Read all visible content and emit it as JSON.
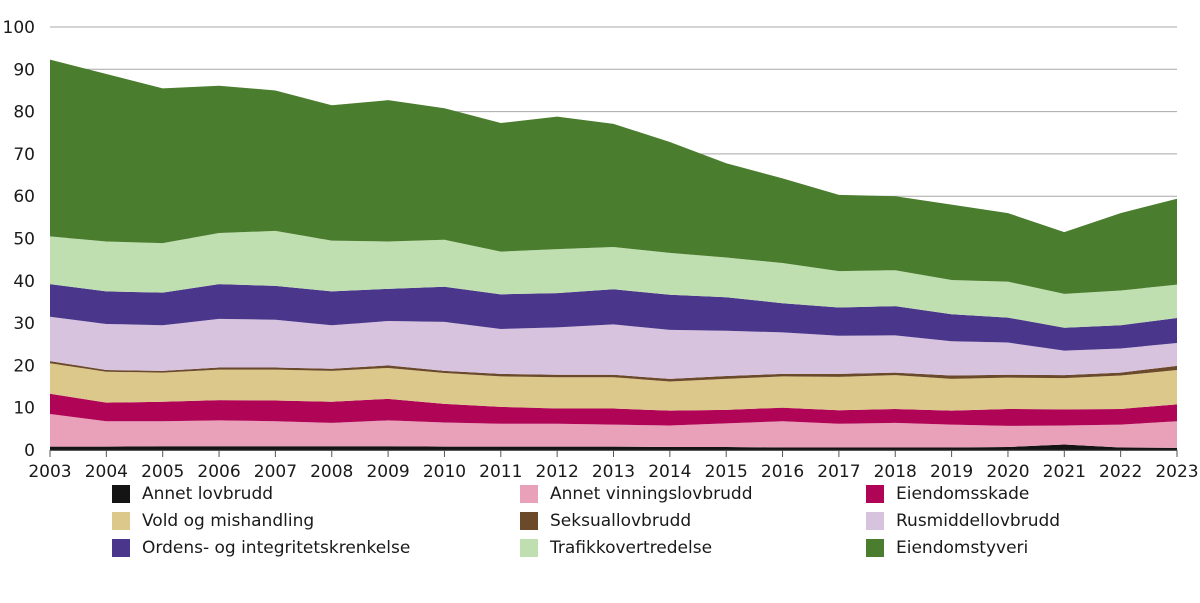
{
  "chart_data": {
    "type": "area",
    "stacked": true,
    "title": "",
    "xlabel": "",
    "ylabel": "",
    "ylim": [
      0,
      100
    ],
    "yticks": [
      0,
      10,
      20,
      30,
      40,
      50,
      60,
      70,
      80,
      90,
      100
    ],
    "grid": "horizontal",
    "legend_position": "bottom",
    "x": [
      2003,
      2004,
      2005,
      2006,
      2007,
      2008,
      2009,
      2010,
      2011,
      2012,
      2013,
      2014,
      2015,
      2016,
      2017,
      2018,
      2019,
      2020,
      2021,
      2022,
      2023
    ],
    "series": [
      {
        "name": "Annet lovbrudd",
        "color": "#141414",
        "values": [
          0.8,
          0.8,
          0.9,
          0.9,
          0.9,
          0.9,
          0.9,
          0.8,
          0.8,
          0.8,
          0.8,
          0.7,
          0.7,
          0.6,
          0.6,
          0.6,
          0.6,
          0.7,
          1.3,
          0.6,
          0.5
        ]
      },
      {
        "name": "Annet vinningslovbrudd",
        "color": "#e8a1b9",
        "values": [
          7.7,
          6.0,
          5.9,
          6.1,
          5.9,
          5.5,
          6.1,
          5.7,
          5.4,
          5.4,
          5.2,
          5.1,
          5.6,
          6.2,
          5.6,
          5.8,
          5.4,
          5.0,
          4.5,
          5.4,
          6.3
        ]
      },
      {
        "name": "Eiendomsskade",
        "color": "#b00556",
        "values": [
          4.8,
          4.4,
          4.6,
          4.8,
          4.9,
          5.0,
          5.1,
          4.4,
          4.0,
          3.6,
          3.8,
          3.5,
          3.2,
          3.2,
          3.2,
          3.3,
          3.3,
          4.0,
          3.8,
          3.7,
          4.0
        ]
      },
      {
        "name": "Vold og mishandling",
        "color": "#dcc88b",
        "values": [
          7.2,
          7.3,
          6.9,
          7.2,
          7.3,
          7.3,
          7.3,
          7.3,
          7.2,
          7.4,
          7.4,
          6.9,
          7.3,
          7.4,
          7.9,
          8.0,
          7.5,
          7.4,
          7.4,
          7.9,
          8.1
        ]
      },
      {
        "name": "Seksuallovbrudd",
        "color": "#6b4a2c",
        "values": [
          0.5,
          0.4,
          0.4,
          0.5,
          0.5,
          0.5,
          0.6,
          0.5,
          0.6,
          0.6,
          0.6,
          0.6,
          0.7,
          0.6,
          0.7,
          0.6,
          0.8,
          0.7,
          0.7,
          0.7,
          1.0
        ]
      },
      {
        "name": "Rusmiddellovbrudd",
        "color": "#d8c3df",
        "values": [
          10.5,
          10.9,
          10.8,
          11.5,
          11.3,
          10.3,
          10.5,
          11.6,
          10.6,
          11.2,
          11.9,
          11.6,
          10.7,
          9.8,
          9.0,
          8.8,
          8.1,
          7.6,
          5.8,
          5.7,
          5.4
        ]
      },
      {
        "name": "Ordens- og integritetskrenkelse",
        "color": "#4a378c",
        "values": [
          7.7,
          7.7,
          7.7,
          8.2,
          8.0,
          8.0,
          7.6,
          8.3,
          8.2,
          8.1,
          8.3,
          8.3,
          7.9,
          6.9,
          6.7,
          6.9,
          6.4,
          5.9,
          5.4,
          5.5,
          5.9
        ]
      },
      {
        "name": "Trafikkovertredelse",
        "color": "#bfdfb0",
        "values": [
          11.3,
          11.8,
          11.7,
          12.1,
          13.0,
          12.0,
          11.2,
          11.1,
          10.1,
          10.4,
          10.0,
          9.9,
          9.4,
          9.5,
          8.6,
          8.5,
          8.1,
          8.5,
          8.0,
          8.2,
          7.9
        ]
      },
      {
        "name": "Eiendomstyveri",
        "color": "#4a7d2d",
        "values": [
          41.8,
          39.6,
          36.6,
          34.8,
          33.2,
          32.0,
          33.4,
          31.1,
          30.4,
          31.3,
          29.1,
          26.2,
          22.3,
          20.0,
          18.0,
          17.5,
          17.8,
          16.2,
          14.6,
          18.3,
          20.3
        ]
      }
    ],
    "legend_order": [
      0,
      1,
      2,
      3,
      4,
      5,
      6,
      7,
      8
    ]
  }
}
